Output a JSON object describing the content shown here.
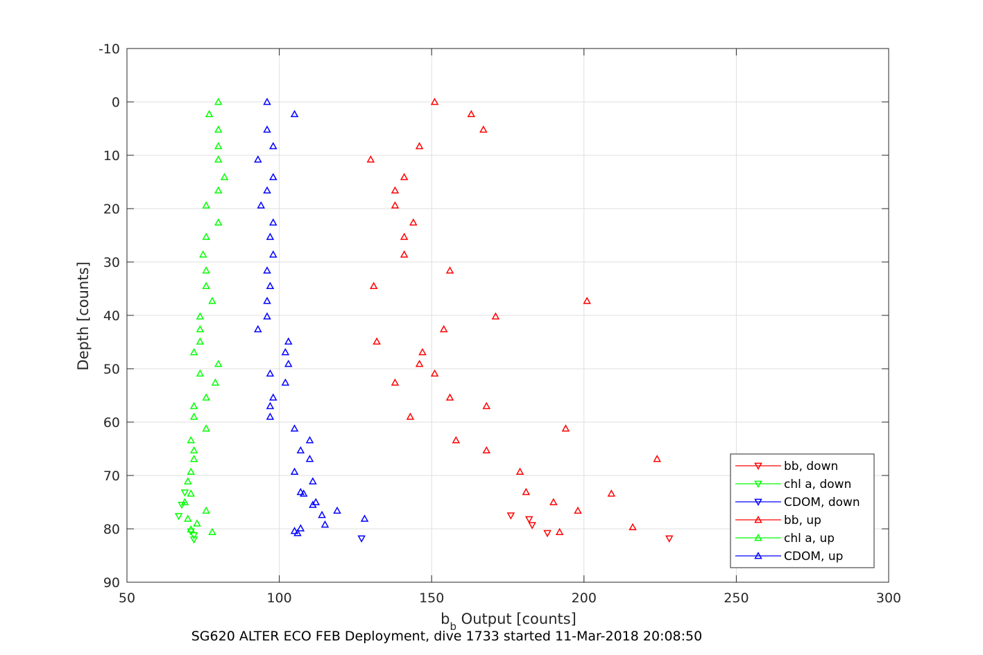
{
  "caption": "SG620 ALTER ECO FEB Deployment, dive 1733 started 11-Mar-2018 20:08:50",
  "chart_data": {
    "type": "scatter",
    "xlabel_main": "b",
    "xlabel_sub": "b",
    "xlabel_rest": " Output [counts]",
    "ylabel": "Depth [counts]",
    "xlim": [
      50,
      300
    ],
    "ylim": [
      90,
      -10
    ],
    "y_reversed": true,
    "grid": true,
    "legend_placement": "bottom-right",
    "x_ticks": [
      "50",
      "100",
      "150",
      "200",
      "250",
      "300"
    ],
    "y_ticks": [
      "-10",
      "0",
      "10",
      "20",
      "30",
      "40",
      "50",
      "60",
      "70",
      "80",
      "90"
    ],
    "series": [
      {
        "name": "bb, down",
        "color": "#ff0000",
        "marker": "triangle-down",
        "x": [
          176,
          182,
          183,
          188,
          228
        ],
        "y": [
          77.5,
          78.2,
          79.3,
          80.8,
          81.8
        ]
      },
      {
        "name": "chl a, down",
        "color": "#00ff00",
        "marker": "triangle-down",
        "x": [
          69,
          68,
          67,
          71,
          72,
          72
        ],
        "y": [
          73.2,
          75.5,
          77.6,
          80.5,
          81.2,
          82.0
        ]
      },
      {
        "name": "CDOM, down",
        "color": "#0000ff",
        "marker": "triangle-down",
        "x": [
          127
        ],
        "y": [
          81.8
        ]
      },
      {
        "name": "bb, up",
        "color": "#ff0000",
        "marker": "triangle-up",
        "x": [
          151,
          163,
          167,
          146,
          130,
          141,
          138,
          138,
          144,
          141,
          141,
          156,
          131,
          201,
          171,
          154,
          132,
          147,
          146,
          151,
          138,
          156,
          168,
          143,
          194,
          158,
          168,
          224,
          179,
          181,
          209,
          190,
          198,
          216,
          192
        ],
        "y": [
          0,
          2.3,
          5.2,
          8.3,
          10.8,
          14.1,
          16.6,
          19.4,
          22.6,
          25.3,
          28.6,
          31.6,
          34.5,
          37.3,
          40.2,
          42.6,
          44.9,
          46.9,
          49.1,
          50.9,
          52.6,
          55.4,
          57.0,
          59.0,
          61.2,
          63.4,
          65.3,
          66.9,
          69.3,
          73.1,
          73.4,
          75.0,
          76.6,
          79.7,
          80.6
        ]
      },
      {
        "name": "chl a, up",
        "color": "#00ff00",
        "marker": "triangle-up",
        "x": [
          80,
          77,
          80,
          80,
          80,
          82,
          80,
          76,
          80,
          76,
          75,
          76,
          76,
          78,
          74,
          74,
          74,
          72,
          80,
          74,
          79,
          76,
          72,
          72,
          76,
          71,
          72,
          72,
          71,
          70,
          71,
          69,
          76,
          70,
          73,
          71,
          78
        ],
        "y": [
          0,
          2.3,
          5.2,
          8.3,
          10.8,
          14.1,
          16.6,
          19.4,
          22.6,
          25.3,
          28.6,
          31.6,
          34.5,
          37.3,
          40.2,
          42.6,
          44.9,
          46.9,
          49.1,
          50.9,
          52.6,
          55.4,
          57.0,
          59.0,
          61.2,
          63.4,
          65.3,
          66.9,
          69.3,
          71.1,
          73.4,
          75.0,
          76.6,
          78.1,
          79.0,
          80.1,
          80.6
        ]
      },
      {
        "name": "CDOM, up",
        "color": "#0000ff",
        "marker": "triangle-up",
        "x": [
          96,
          105,
          96,
          98,
          93,
          98,
          96,
          94,
          98,
          97,
          98,
          96,
          97,
          96,
          96,
          93,
          103,
          102,
          103,
          97,
          102,
          98,
          97,
          97,
          105,
          110,
          107,
          110,
          105,
          111,
          107,
          108,
          112,
          111,
          119,
          114,
          128,
          115,
          107,
          105,
          106
        ],
        "y": [
          0,
          2.3,
          5.2,
          8.3,
          10.8,
          14.1,
          16.6,
          19.4,
          22.6,
          25.3,
          28.6,
          31.6,
          34.5,
          37.3,
          40.2,
          42.6,
          44.9,
          46.9,
          49.1,
          50.9,
          52.6,
          55.4,
          57.0,
          59.0,
          61.2,
          63.4,
          65.3,
          66.9,
          69.3,
          71.1,
          73.1,
          73.4,
          75.0,
          75.5,
          76.6,
          77.4,
          78.1,
          79.2,
          79.9,
          80.4,
          80.8
        ]
      }
    ]
  }
}
